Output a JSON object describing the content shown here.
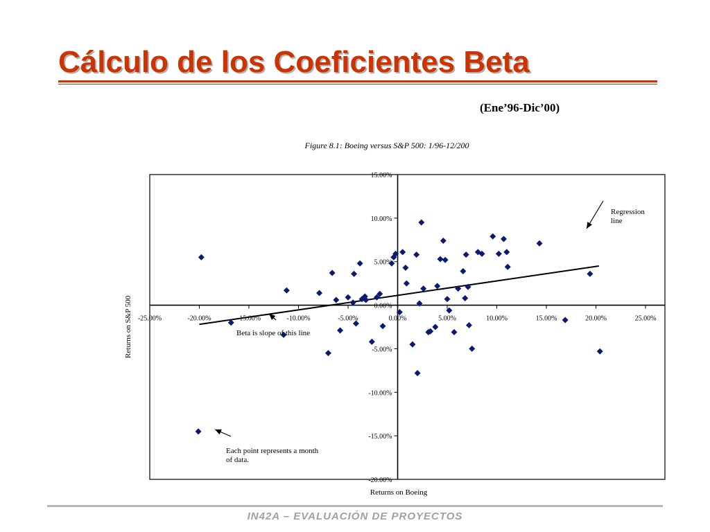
{
  "slide": {
    "title": "Cálculo de los Coeficientes Beta",
    "date_range": "(Ene’96-Dic’00)",
    "footer": "IN42A – EVALUACIÓN DE PROYECTOS",
    "title_color": "#cc3300"
  },
  "chart_data": {
    "type": "scatter",
    "title": "Figure 8.1: Boeing versus S&P 500: 1/96-12/200",
    "xlabel": "Returns on Boeing",
    "ylabel": "Returns on S&P 500",
    "xlim": [
      -25,
      25
    ],
    "ylim": [
      -20,
      15
    ],
    "x_ticks": [
      -25,
      -20,
      -15,
      -10,
      -5,
      0,
      5,
      10,
      15,
      20,
      25
    ],
    "x_tick_labels": [
      "-25.00%",
      "-20.00%",
      "-15.00%",
      "-10.00%",
      "-5.00%",
      "0.00%",
      "5.00%",
      "10.00%",
      "15.00%",
      "20.00%",
      "25.00%"
    ],
    "y_ticks": [
      15,
      10,
      5,
      0,
      -5,
      -10,
      -15,
      -20
    ],
    "y_tick_labels": [
      "15.00%",
      "10.00%",
      "5.00%",
      "0.00%",
      "-5.00%",
      "-10.00%",
      "-15.00%",
      "-20.00%"
    ],
    "grid": false,
    "point_color": "#0b1a6e",
    "line_color": "#000000",
    "regression_line": {
      "x": [
        -20,
        20.3
      ],
      "y": [
        -2.2,
        4.5
      ]
    },
    "points": [
      [
        -19.8,
        5.5
      ],
      [
        -20.1,
        -14.5
      ],
      [
        -16.8,
        -2.0
      ],
      [
        -11.5,
        -3.4
      ],
      [
        -11.2,
        1.7
      ],
      [
        -7.9,
        1.4
      ],
      [
        -7.0,
        -5.5
      ],
      [
        -6.6,
        3.7
      ],
      [
        -6.2,
        0.6
      ],
      [
        -5.8,
        -2.9
      ],
      [
        -5.0,
        0.9
      ],
      [
        -4.5,
        0.3
      ],
      [
        -4.4,
        3.6
      ],
      [
        -4.2,
        -2.1
      ],
      [
        -3.8,
        4.8
      ],
      [
        -3.6,
        0.7
      ],
      [
        -3.3,
        1.0
      ],
      [
        -3.2,
        0.6
      ],
      [
        -2.6,
        -4.2
      ],
      [
        -2.1,
        0.9
      ],
      [
        -1.8,
        1.3
      ],
      [
        -1.5,
        -2.4
      ],
      [
        -0.6,
        4.8
      ],
      [
        -0.4,
        5.5
      ],
      [
        -0.2,
        5.9
      ],
      [
        0.2,
        -0.8
      ],
      [
        0.5,
        6.1
      ],
      [
        0.8,
        4.3
      ],
      [
        0.9,
        2.5
      ],
      [
        1.5,
        -4.5
      ],
      [
        1.9,
        5.8
      ],
      [
        2.0,
        -7.8
      ],
      [
        2.2,
        0.2
      ],
      [
        2.4,
        9.5
      ],
      [
        2.6,
        1.9
      ],
      [
        3.1,
        -3.1
      ],
      [
        3.3,
        -3.0
      ],
      [
        3.8,
        -2.5
      ],
      [
        4.0,
        2.2
      ],
      [
        4.3,
        5.3
      ],
      [
        4.6,
        7.4
      ],
      [
        4.8,
        5.2
      ],
      [
        5.0,
        0.7
      ],
      [
        5.2,
        -0.6
      ],
      [
        5.7,
        -3.1
      ],
      [
        6.1,
        1.9
      ],
      [
        6.6,
        3.9
      ],
      [
        6.8,
        0.8
      ],
      [
        6.9,
        5.8
      ],
      [
        7.1,
        2.1
      ],
      [
        7.2,
        -2.3
      ],
      [
        7.5,
        -5.0
      ],
      [
        8.1,
        6.1
      ],
      [
        8.5,
        5.9
      ],
      [
        9.6,
        7.9
      ],
      [
        10.2,
        5.9
      ],
      [
        10.7,
        7.6
      ],
      [
        11.0,
        6.1
      ],
      [
        11.1,
        4.4
      ],
      [
        14.3,
        7.1
      ],
      [
        16.9,
        -1.7
      ],
      [
        19.4,
        3.6
      ],
      [
        20.4,
        -5.3
      ]
    ],
    "annotations": {
      "regression": "Regression\nline",
      "beta": "Beta is slope of this line",
      "point": "Each point represents a month\nof data."
    }
  }
}
